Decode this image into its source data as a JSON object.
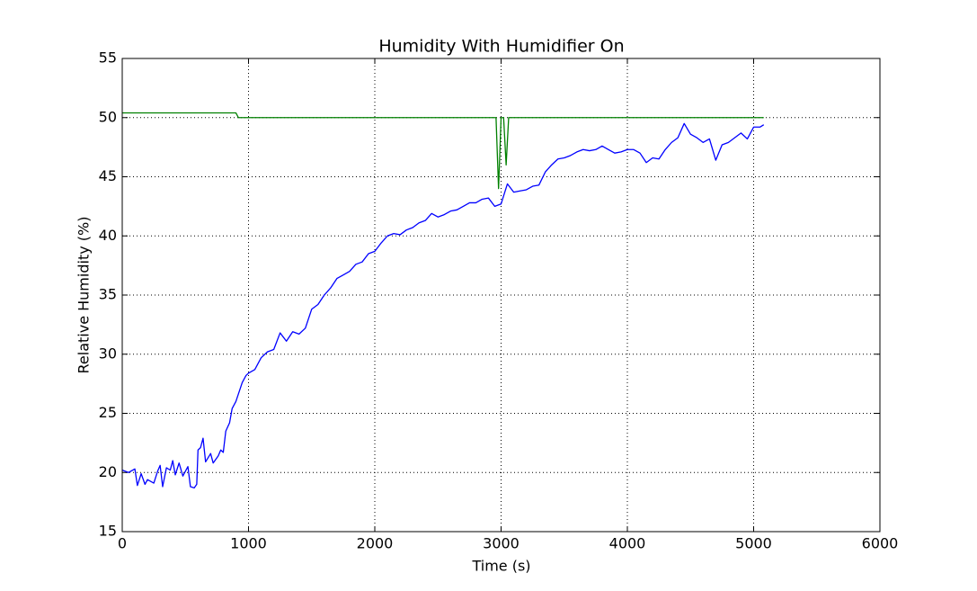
{
  "chart_data": {
    "type": "line",
    "title": "Humidity With Humidifier On",
    "x_label": "Time (s)",
    "y_label": "Relative Humidity (%)",
    "xlim": [
      0,
      6000
    ],
    "xticks": [
      0,
      1000,
      2000,
      3000,
      4000,
      5000,
      6000
    ],
    "ylim": [
      15,
      55
    ],
    "yticks": [
      15,
      20,
      25,
      30,
      35,
      40,
      45,
      50,
      55
    ],
    "grid": true,
    "series": [
      {
        "color": "#0000ff",
        "x": [
          0,
          50,
          100,
          120,
          150,
          180,
          200,
          250,
          280,
          300,
          320,
          350,
          380,
          400,
          420,
          450,
          480,
          520,
          540,
          570,
          590,
          600,
          620,
          640,
          660,
          700,
          720,
          760,
          780,
          800,
          820,
          850,
          870,
          900,
          950,
          980,
          1000,
          1050,
          1100,
          1150,
          1200,
          1250,
          1300,
          1350,
          1400,
          1450,
          1500,
          1550,
          1600,
          1650,
          1700,
          1750,
          1800,
          1850,
          1900,
          1950,
          2000,
          2050,
          2100,
          2150,
          2200,
          2250,
          2300,
          2350,
          2400,
          2450,
          2500,
          2550,
          2600,
          2650,
          2700,
          2750,
          2800,
          2850,
          2900,
          2950,
          3000,
          3050,
          3100,
          3150,
          3200,
          3250,
          3300,
          3350,
          3400,
          3450,
          3500,
          3550,
          3600,
          3650,
          3700,
          3750,
          3800,
          3850,
          3900,
          3950,
          4000,
          4050,
          4100,
          4150,
          4200,
          4250,
          4300,
          4350,
          4400,
          4450,
          4500,
          4550,
          4600,
          4650,
          4700,
          4750,
          4800,
          4850,
          4900,
          4950,
          5000,
          5050,
          5080
        ],
        "values": [
          20.2,
          20.0,
          20.3,
          18.9,
          19.9,
          19.0,
          19.4,
          19.1,
          20.1,
          20.6,
          18.8,
          20.4,
          20.2,
          21.0,
          19.8,
          20.8,
          19.7,
          20.5,
          18.8,
          18.7,
          19.0,
          21.9,
          22.1,
          22.9,
          20.9,
          21.6,
          20.8,
          21.4,
          21.9,
          21.7,
          23.5,
          24.2,
          25.4,
          26.0,
          27.6,
          28.2,
          28.4,
          28.7,
          29.7,
          30.2,
          30.4,
          31.8,
          31.1,
          31.9,
          31.7,
          32.2,
          33.8,
          34.2,
          35.0,
          35.6,
          36.4,
          36.7,
          37.0,
          37.6,
          37.8,
          38.5,
          38.7,
          39.4,
          40.0,
          40.2,
          40.1,
          40.5,
          40.7,
          41.1,
          41.3,
          41.9,
          41.6,
          41.8,
          42.1,
          42.2,
          42.5,
          42.8,
          42.8,
          43.1,
          43.2,
          42.5,
          42.7,
          44.4,
          43.7,
          43.8,
          43.9,
          44.2,
          44.3,
          45.4,
          46.0,
          46.5,
          46.6,
          46.8,
          47.1,
          47.3,
          47.2,
          47.3,
          47.6,
          47.3,
          47.0,
          47.1,
          47.3,
          47.3,
          47.0,
          46.2,
          46.6,
          46.5,
          47.3,
          47.9,
          48.3,
          49.5,
          48.6,
          48.3,
          47.9,
          48.2,
          46.4,
          47.7,
          47.9,
          48.3,
          48.7,
          48.2,
          49.2,
          49.2,
          49.4
        ]
      },
      {
        "color": "#008000",
        "x": [
          0,
          900,
          920,
          2960,
          2980,
          3000,
          3020,
          3040,
          3060,
          5080
        ],
        "values": [
          50.4,
          50.4,
          50,
          50,
          44,
          50,
          50,
          46,
          50,
          50
        ]
      }
    ]
  }
}
